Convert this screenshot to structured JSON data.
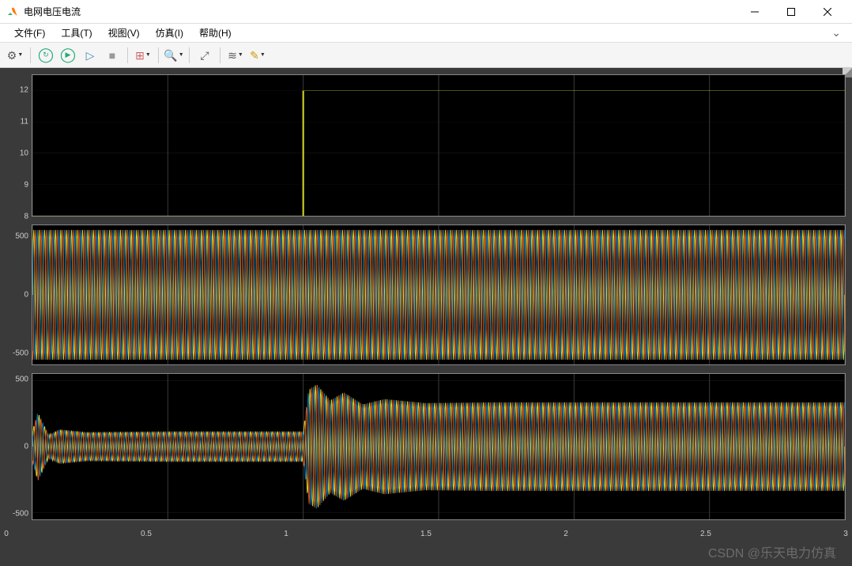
{
  "window": {
    "title": "电网电压电流",
    "icon_bg": "#ff8a00",
    "icon_peak": "#0072bd"
  },
  "menu": {
    "items": [
      "文件(F)",
      "工具(T)",
      "视图(V)",
      "仿真(I)",
      "帮助(H)"
    ],
    "overflow": "⌄"
  },
  "toolbar": {
    "icons": [
      {
        "name": "settings-icon",
        "glyph": "⚙",
        "color": "#555",
        "dd": true
      },
      {
        "sep": true
      },
      {
        "name": "restart-icon",
        "glyph": "↻",
        "color": "#2a7",
        "wrap": "◯"
      },
      {
        "name": "run-icon",
        "glyph": "▶",
        "color": "#2a7",
        "wrap": "◯"
      },
      {
        "name": "step-icon",
        "glyph": "▷",
        "color": "#48a"
      },
      {
        "name": "stop-icon",
        "glyph": "■",
        "color": "#999"
      },
      {
        "sep": true
      },
      {
        "name": "signal-icon",
        "glyph": "⊞",
        "color": "#c66",
        "dd": true
      },
      {
        "sep": true
      },
      {
        "name": "zoom-icon",
        "glyph": "🔍",
        "color": "#555",
        "dd": true
      },
      {
        "sep": true
      },
      {
        "name": "autoscale-icon",
        "glyph": "⤢",
        "color": "#555"
      },
      {
        "sep": true
      },
      {
        "name": "measure-icon",
        "glyph": "≋",
        "color": "#555",
        "dd": true
      },
      {
        "name": "highlight-icon",
        "glyph": "✎",
        "color": "#c90",
        "dd": true
      }
    ]
  },
  "scope": {
    "bg": "#3b3b3b",
    "plot_bg": "#000000",
    "border": "#8a8a8a",
    "grid_color": "#3a3a3a",
    "tick_color": "#cccccc",
    "label_fontsize": 10,
    "xlim": [
      0,
      3
    ],
    "xticks": [
      0,
      0.5,
      1,
      1.5,
      2,
      2.5,
      3
    ],
    "plots": [
      {
        "name": "plot-step",
        "height": 180,
        "ylim": [
          8,
          12.5
        ],
        "yticks": [
          8,
          9,
          10,
          11,
          12
        ],
        "type": "line",
        "series": [
          {
            "color": "#d6d62a",
            "width": 1,
            "pts": [
              [
                0,
                8
              ],
              [
                1,
                8
              ],
              [
                1,
                12
              ],
              [
                3,
                12
              ]
            ]
          }
        ]
      },
      {
        "name": "plot-voltage",
        "height": 178,
        "ylim": [
          -600,
          600
        ],
        "yticks": [
          -500,
          0,
          500
        ],
        "type": "three-phase-sine",
        "sine": {
          "freq_hz": 50,
          "amplitude": 560,
          "colors": [
            "#d6d62a",
            "#0072bd",
            "#d95319"
          ],
          "phases": [
            0,
            120,
            240
          ]
        }
      },
      {
        "name": "plot-current",
        "height": 186,
        "ylim": [
          -550,
          550
        ],
        "yticks": [
          -500,
          0,
          500
        ],
        "type": "three-phase-sine-envelope",
        "sine": {
          "freq_hz": 50,
          "colors": [
            "#d6d62a",
            "#0072bd",
            "#d95319"
          ],
          "phases": [
            0,
            120,
            240
          ],
          "envelope": [
            [
              0.0,
              120
            ],
            [
              0.02,
              260
            ],
            [
              0.06,
              90
            ],
            [
              0.1,
              130
            ],
            [
              0.2,
              110
            ],
            [
              0.5,
              115
            ],
            [
              0.8,
              115
            ],
            [
              0.98,
              115
            ],
            [
              1.0,
              115
            ],
            [
              1.02,
              430
            ],
            [
              1.05,
              470
            ],
            [
              1.1,
              350
            ],
            [
              1.15,
              410
            ],
            [
              1.22,
              320
            ],
            [
              1.3,
              360
            ],
            [
              1.45,
              330
            ],
            [
              1.7,
              335
            ],
            [
              2.0,
              335
            ],
            [
              2.5,
              335
            ],
            [
              3.0,
              335
            ]
          ]
        }
      }
    ]
  },
  "watermark": "CSDN @乐天电力仿真"
}
